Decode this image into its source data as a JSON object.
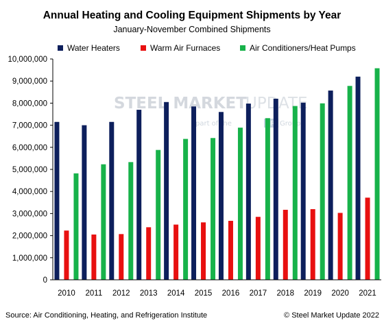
{
  "chart_data": {
    "type": "bar",
    "title": "Annual Heating and Cooling Equipment Shipments by Year",
    "subtitle": "January-November  Combined Shipments",
    "categories": [
      "2010",
      "2011",
      "2012",
      "2013",
      "2014",
      "2015",
      "2016",
      "2017",
      "2018",
      "2019",
      "2020",
      "2021"
    ],
    "series": [
      {
        "name": "Water Heaters",
        "color": "#0d1f5c",
        "values": [
          7150000,
          7000000,
          7150000,
          7700000,
          8050000,
          7850000,
          7600000,
          7980000,
          8200000,
          8020000,
          8570000,
          9200000
        ]
      },
      {
        "name": "Warm Air Furnaces",
        "color": "#e81010",
        "values": [
          2230000,
          2050000,
          2070000,
          2380000,
          2500000,
          2600000,
          2670000,
          2850000,
          3170000,
          3200000,
          3030000,
          3720000
        ]
      },
      {
        "name": "Air Conditioners/Heat Pumps",
        "color": "#17b24a",
        "values": [
          4820000,
          5230000,
          5330000,
          5880000,
          6380000,
          6420000,
          6890000,
          7320000,
          7870000,
          7990000,
          8780000,
          9580000
        ]
      }
    ],
    "ylim": [
      0,
      10000000
    ],
    "yticks": [
      0,
      1000000,
      2000000,
      3000000,
      4000000,
      5000000,
      6000000,
      7000000,
      8000000,
      9000000,
      10000000
    ],
    "ytick_labels": [
      "0",
      "1,000,000",
      "2,000,000",
      "3,000,000",
      "4,000,000",
      "5,000,000",
      "6,000,000",
      "7,000,000",
      "8,000,000",
      "9,000,000",
      "10,000,000"
    ],
    "xlabel": "",
    "ylabel": "",
    "grid": false,
    "legend": "top"
  },
  "watermark": {
    "brand_bold": "STEEL MARKET",
    "brand_light": "UPDATE",
    "tagline_pre": "part of the",
    "tagline_box": "CRU",
    "tagline_post": "Group"
  },
  "footer": {
    "source": "Source: Air Conditioning, Heating, and Refrigeration Institute",
    "copyright": "© Steel Market Update 2022"
  }
}
